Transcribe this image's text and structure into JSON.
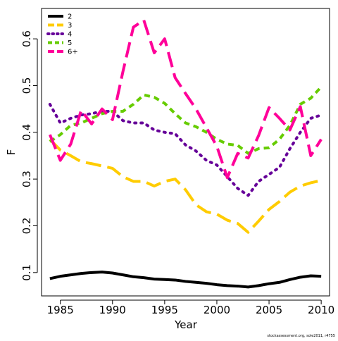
{
  "chart_data": {
    "type": "line",
    "xlabel": "Year",
    "ylabel": "F",
    "xlim": [
      1983.2,
      2010.8
    ],
    "ylim": [
      0.05,
      0.665
    ],
    "x_ticks": [
      1985,
      1990,
      1995,
      2000,
      2005,
      2010
    ],
    "y_ticks": [
      0.1,
      0.2,
      0.3,
      0.4,
      0.5,
      0.6
    ],
    "x_tick_labels": [
      "1985",
      "1990",
      "1995",
      "2000",
      "2005",
      "2010"
    ],
    "y_tick_labels": [
      "0.1",
      "0.2",
      "0.3",
      "0.4",
      "0.5",
      "0.6"
    ],
    "grid": false,
    "legend_position": "top-left",
    "x": [
      1984,
      1985,
      1986,
      1987,
      1988,
      1989,
      1990,
      1991,
      1992,
      1993,
      1994,
      1995,
      1996,
      1997,
      1998,
      1999,
      2000,
      2001,
      2002,
      2003,
      2004,
      2005,
      2006,
      2007,
      2008,
      2009,
      2010
    ],
    "series": [
      {
        "name": "2",
        "color": "#000000",
        "dash": "solid",
        "values": [
          0.087,
          0.092,
          0.095,
          0.098,
          0.1,
          0.101,
          0.099,
          0.095,
          0.091,
          0.089,
          0.086,
          0.085,
          0.084,
          0.081,
          0.079,
          0.077,
          0.074,
          0.072,
          0.071,
          0.069,
          0.072,
          0.076,
          0.079,
          0.085,
          0.09,
          0.093,
          0.092
        ]
      },
      {
        "name": "3",
        "color": "#FFCC00",
        "dash": "longdash",
        "values": [
          0.385,
          0.362,
          0.35,
          0.337,
          0.333,
          0.328,
          0.323,
          0.305,
          0.295,
          0.295,
          0.285,
          0.295,
          0.3,
          0.277,
          0.245,
          0.23,
          0.225,
          0.212,
          0.205,
          0.186,
          0.21,
          0.235,
          0.252,
          0.272,
          0.285,
          0.292,
          0.297
        ]
      },
      {
        "name": "4",
        "color": "#660099",
        "dash": "dotted",
        "values": [
          0.46,
          0.42,
          0.43,
          0.437,
          0.44,
          0.445,
          0.445,
          0.425,
          0.42,
          0.42,
          0.405,
          0.4,
          0.397,
          0.373,
          0.36,
          0.34,
          0.33,
          0.305,
          0.28,
          0.265,
          0.295,
          0.31,
          0.325,
          0.365,
          0.4,
          0.43,
          0.437
        ]
      },
      {
        "name": "5",
        "color": "#66CC00",
        "dash": "dashed",
        "values": [
          0.38,
          0.395,
          0.415,
          0.42,
          0.43,
          0.44,
          0.445,
          0.445,
          0.46,
          0.48,
          0.475,
          0.462,
          0.44,
          0.42,
          0.412,
          0.4,
          0.385,
          0.375,
          0.372,
          0.355,
          0.365,
          0.367,
          0.385,
          0.415,
          0.46,
          0.473,
          0.497
        ]
      },
      {
        "name": "6+",
        "color": "#FF0099",
        "dash": "longdash",
        "values": [
          0.395,
          0.34,
          0.375,
          0.447,
          0.418,
          0.45,
          0.427,
          0.53,
          0.625,
          0.64,
          0.57,
          0.6,
          0.517,
          0.483,
          0.45,
          0.41,
          0.37,
          0.303,
          0.355,
          0.345,
          0.393,
          0.453,
          0.43,
          0.405,
          0.455,
          0.35,
          0.385
        ]
      }
    ]
  },
  "footer": {
    "note": "stockassessment.org, sole2011, r4755"
  }
}
